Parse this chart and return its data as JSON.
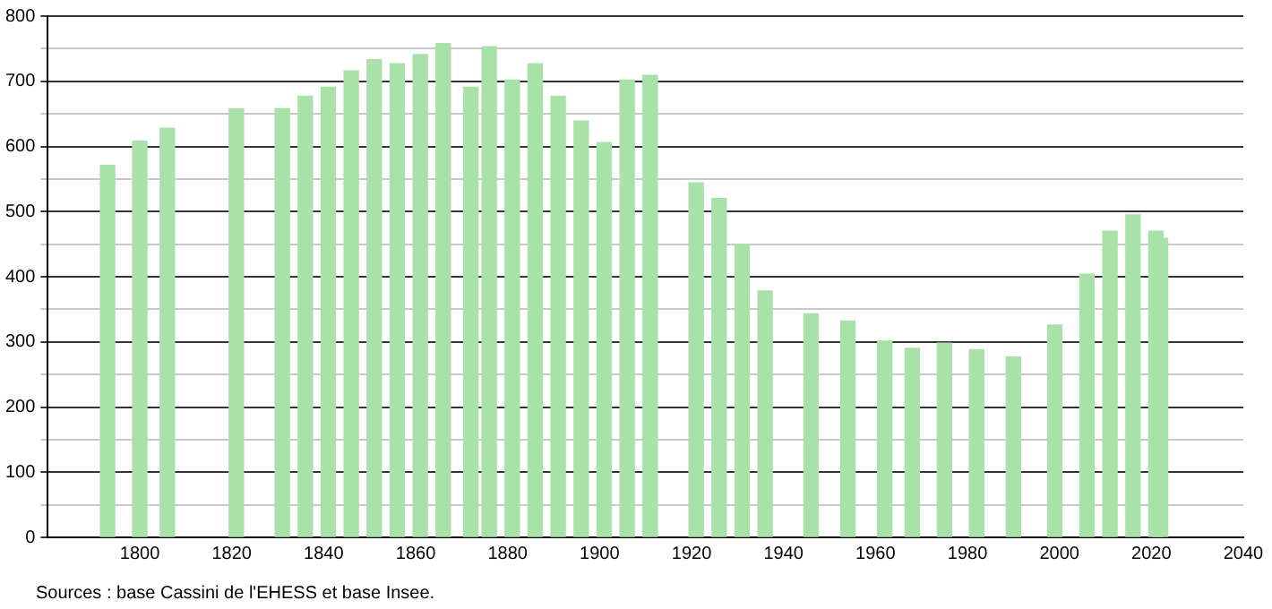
{
  "chart_data": {
    "type": "bar",
    "color": "#a8e2a8",
    "x": [
      1793,
      1800,
      1806,
      1821,
      1831,
      1836,
      1841,
      1846,
      1851,
      1856,
      1861,
      1866,
      1872,
      1876,
      1881,
      1886,
      1891,
      1896,
      1901,
      1906,
      1911,
      1921,
      1926,
      1931,
      1936,
      1946,
      1954,
      1962,
      1968,
      1975,
      1982,
      1990,
      1999,
      2006,
      2011,
      2016,
      2021,
      2022
    ],
    "values": [
      571,
      608,
      628,
      658,
      658,
      677,
      691,
      716,
      733,
      727,
      741,
      758,
      691,
      753,
      702,
      727,
      677,
      639,
      606,
      702,
      709,
      544,
      520,
      450,
      378,
      343,
      332,
      301,
      290,
      298,
      288,
      277,
      326,
      404,
      470,
      495,
      470,
      459
    ],
    "xlim": [
      1780,
      2040
    ],
    "xticks": [
      {
        "value": 1780,
        "label": null
      },
      1800,
      1820,
      1840,
      1860,
      1880,
      1900,
      1920,
      1940,
      1960,
      1980,
      2000,
      2020,
      2040
    ],
    "ylim": [
      0,
      800
    ],
    "yticks": [
      0,
      {
        "value": 50,
        "label": null
      },
      100,
      {
        "value": 150,
        "label": null
      },
      200,
      {
        "value": 250,
        "label": null
      },
      300,
      {
        "value": 350,
        "label": null
      },
      400,
      {
        "value": 450,
        "label": null
      },
      500,
      {
        "value": 550,
        "label": null
      },
      600,
      {
        "value": 650,
        "label": null
      },
      700,
      {
        "value": 750,
        "label": null
      },
      800
    ],
    "grid": "y",
    "annotations": [
      "Sources : base Cassini de l'EHESS et base Insee."
    ]
  }
}
